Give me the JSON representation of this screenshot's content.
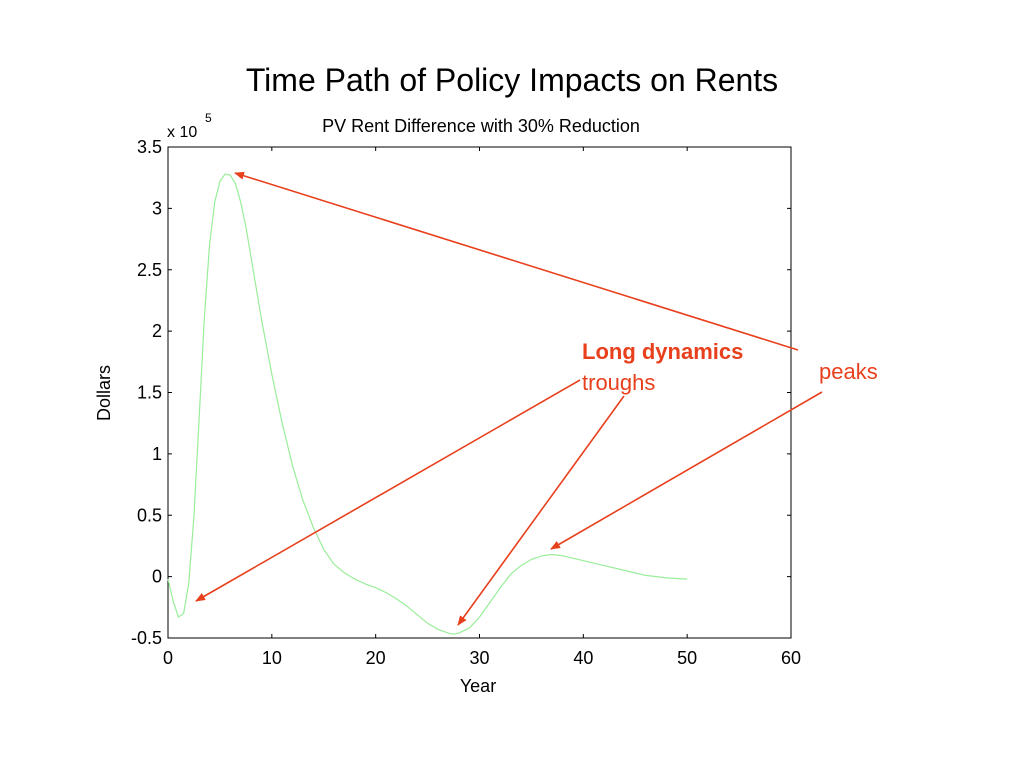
{
  "slide": {
    "title": "Time Path of Policy Impacts on Rents"
  },
  "annotations": {
    "long_dynamics": "Long dynamics",
    "troughs": "troughs",
    "peaks": "peaks",
    "color": "#e8401c"
  },
  "chart_data": {
    "type": "line",
    "title": "PV Rent Difference with 30% Reduction",
    "xlabel": "Year",
    "ylabel": "Dollars",
    "y_multiplier": "x 10",
    "y_multiplier_exponent": "5",
    "xlim": [
      0,
      60
    ],
    "ylim": [
      -0.5,
      3.5
    ],
    "x_ticks": [
      0,
      10,
      20,
      30,
      40,
      50,
      60
    ],
    "x_tick_labels": [
      "0",
      "10",
      "20",
      "30",
      "40",
      "50",
      "60"
    ],
    "y_ticks": [
      -0.5,
      0,
      0.5,
      1,
      1.5,
      2,
      2.5,
      3,
      3.5
    ],
    "y_tick_labels": [
      "-0.5",
      "0",
      "0.5",
      "1",
      "1.5",
      "2",
      "2.5",
      "3",
      "3.5"
    ],
    "grid": false,
    "series": [
      {
        "color": "#99ee99",
        "x": [
          0,
          0.5,
          1,
          1.5,
          2,
          2.5,
          3,
          3.5,
          4,
          4.5,
          5,
          5.5,
          6,
          6.5,
          7,
          7.5,
          8,
          9,
          10,
          11,
          12,
          13,
          14,
          15,
          16,
          17,
          18,
          19,
          20,
          21,
          22,
          23,
          24,
          25,
          26,
          27,
          27.5,
          28,
          29,
          30,
          31,
          32,
          33,
          34,
          35,
          36,
          37,
          38,
          39,
          40,
          42,
          44,
          46,
          48,
          50
        ],
        "y": [
          -0.02,
          -0.2,
          -0.33,
          -0.3,
          -0.05,
          0.5,
          1.3,
          2.1,
          2.7,
          3.05,
          3.22,
          3.28,
          3.27,
          3.2,
          3.05,
          2.85,
          2.6,
          2.1,
          1.65,
          1.25,
          0.9,
          0.62,
          0.4,
          0.22,
          0.1,
          0.03,
          -0.02,
          -0.06,
          -0.09,
          -0.13,
          -0.18,
          -0.24,
          -0.31,
          -0.38,
          -0.43,
          -0.46,
          -0.47,
          -0.46,
          -0.42,
          -0.33,
          -0.21,
          -0.09,
          0.02,
          0.09,
          0.14,
          0.17,
          0.18,
          0.17,
          0.15,
          0.13,
          0.09,
          0.05,
          0.01,
          -0.01,
          -0.02
        ]
      }
    ]
  }
}
